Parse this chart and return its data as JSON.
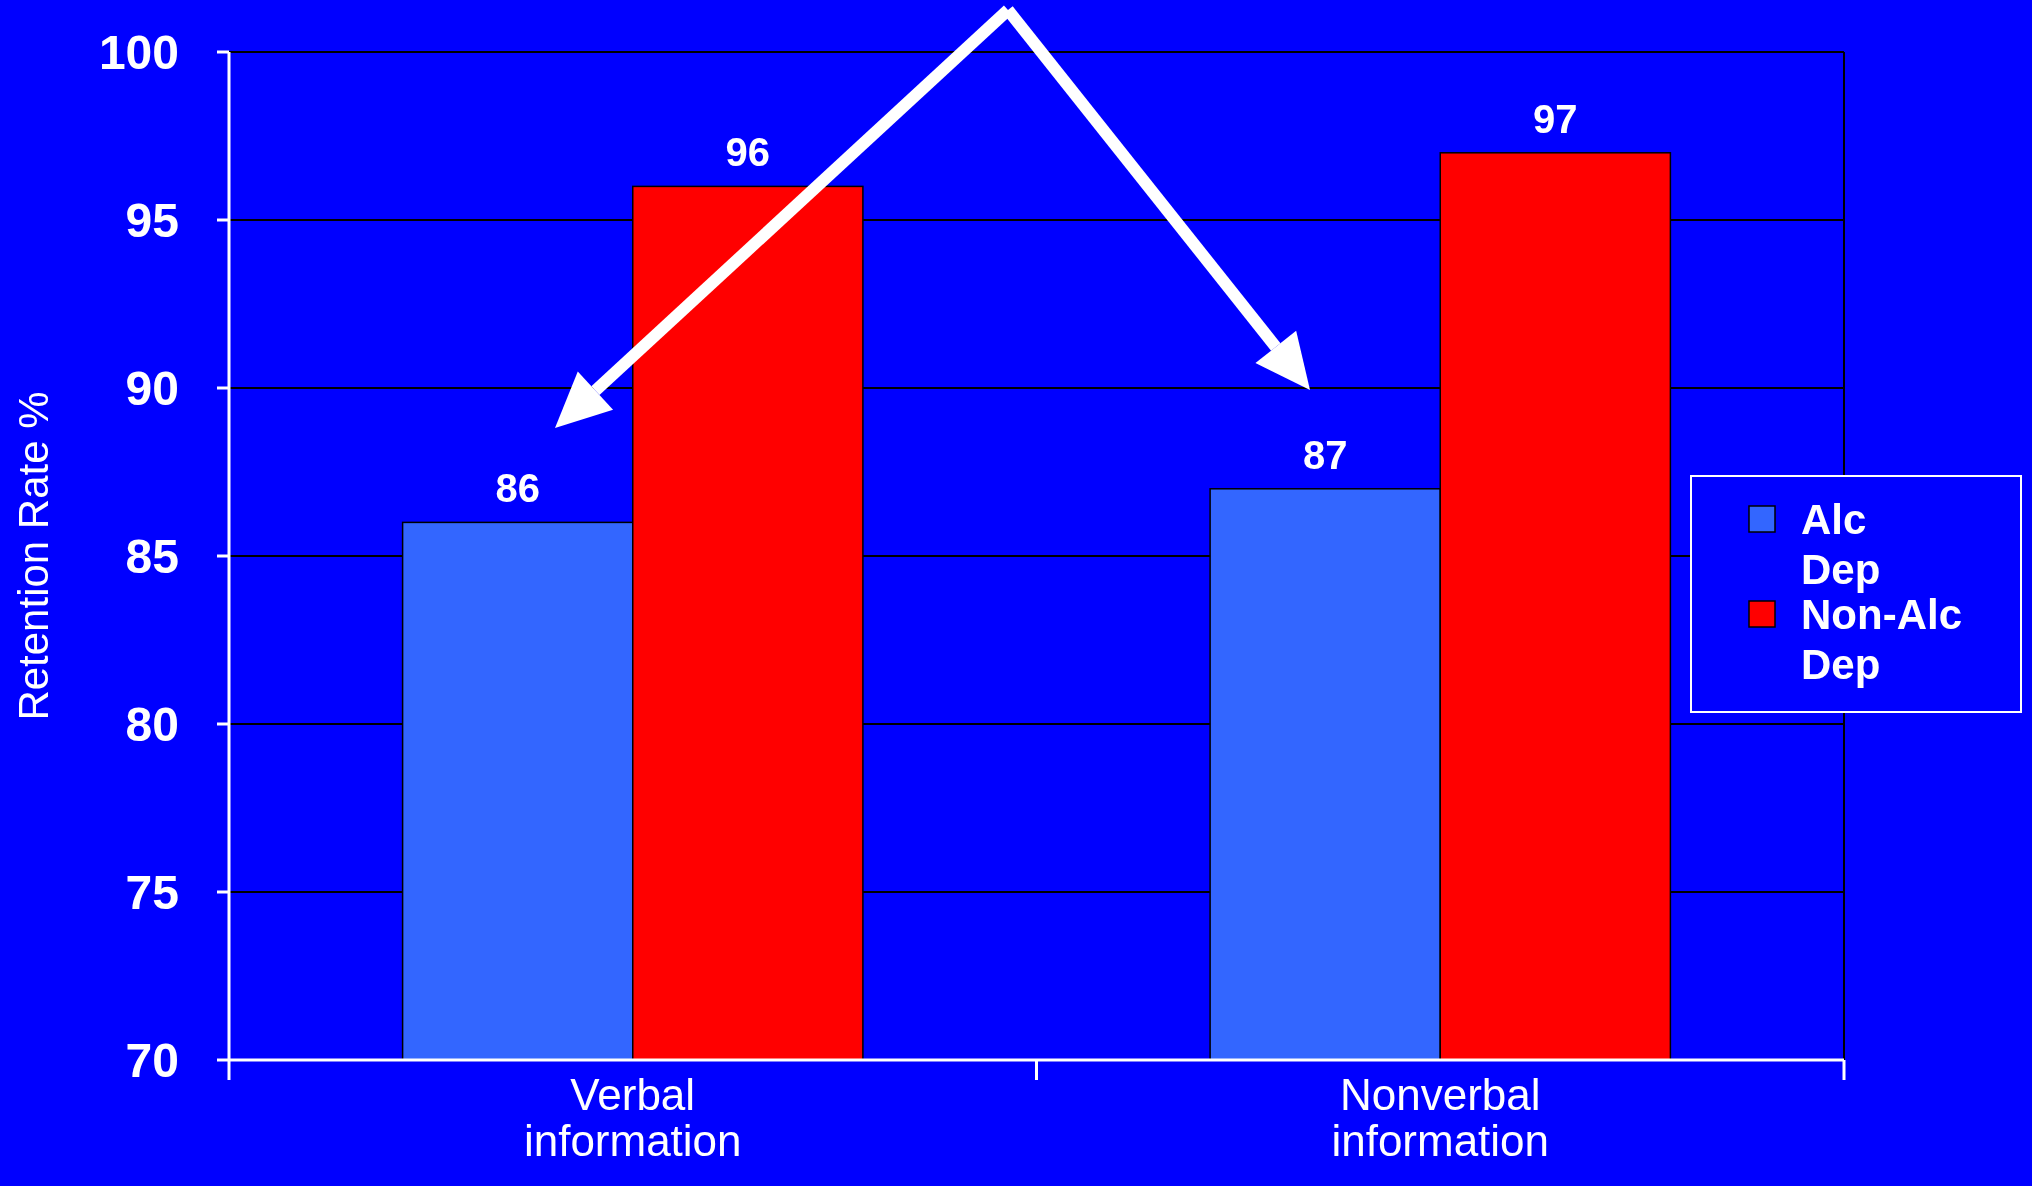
{
  "chart_data": {
    "type": "bar",
    "ylabel": "Retention Rate %",
    "categories": [
      "Verbal information",
      "Nonverbal information"
    ],
    "series": [
      {
        "name": "Alc Dep",
        "color": "#3366ff",
        "values": [
          86,
          87
        ]
      },
      {
        "name": "Non-Alc Dep",
        "color": "#ff0000",
        "values": [
          96,
          97
        ]
      }
    ],
    "ylim": [
      70,
      100
    ],
    "yticks": [
      70,
      75,
      80,
      85,
      90,
      95,
      100
    ],
    "grid": "y",
    "legend": "right",
    "data_labels": true
  }
}
